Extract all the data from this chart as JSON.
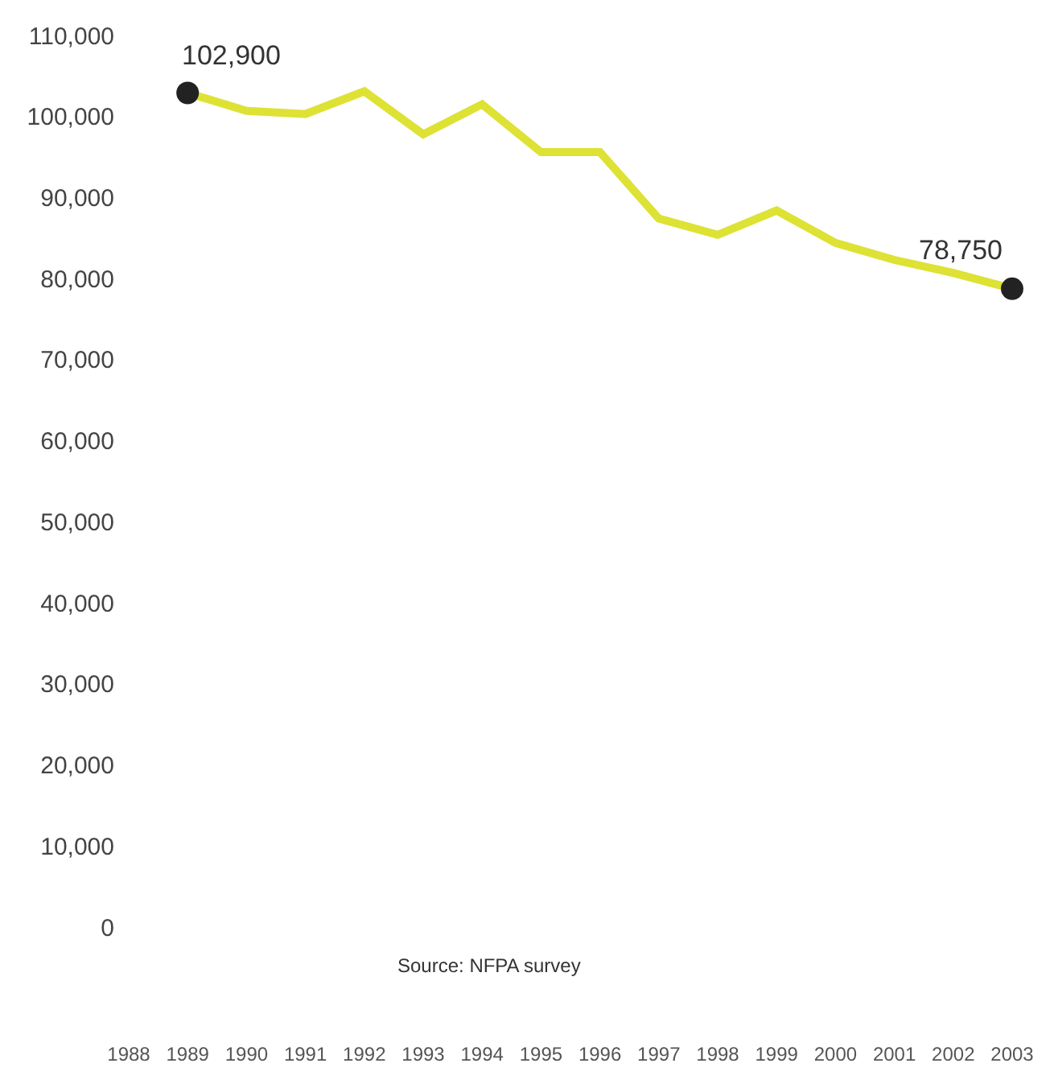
{
  "chart_data": {
    "type": "line",
    "x": [
      1989,
      1990,
      1991,
      1992,
      1993,
      1994,
      1995,
      1996,
      1997,
      1998,
      1999,
      2000,
      2001,
      2002,
      2003
    ],
    "series": [
      {
        "color": "#dde234",
        "values": [
          102900,
          100700,
          100300,
          103100,
          97800,
          101500,
          95600,
          95600,
          87400,
          85400,
          88400,
          84400,
          82300,
          80700,
          78750
        ]
      }
    ],
    "xlim": [
      1988,
      2003
    ],
    "xticks": [
      1988,
      1989,
      1990,
      1991,
      1992,
      1993,
      1994,
      1995,
      1996,
      1997,
      1998,
      1999,
      2000,
      2001,
      2002,
      2003
    ],
    "ylim": [
      0,
      110000
    ],
    "yticks": [
      {
        "value": 0,
        "label": "0"
      },
      {
        "value": 10000,
        "label": "10,000"
      },
      {
        "value": 20000,
        "label": "20,000"
      },
      {
        "value": 30000,
        "label": "30,000"
      },
      {
        "value": 40000,
        "label": "40,000"
      },
      {
        "value": 50000,
        "label": "50,000"
      },
      {
        "value": 60000,
        "label": "60,000"
      },
      {
        "value": 70000,
        "label": "70,000"
      },
      {
        "value": 80000,
        "label": "80,000"
      },
      {
        "value": 90000,
        "label": "90,000"
      },
      {
        "value": 100000,
        "label": "100,000"
      },
      {
        "value": 110000,
        "label": "110,000"
      }
    ],
    "annotations": [
      {
        "text": "102,900",
        "x": 1989,
        "y": 102900
      },
      {
        "text": "78,750",
        "x": 2003,
        "y": 78750
      },
      "Source: NFPA survey"
    ],
    "marker": "none",
    "line_style": "solid"
  }
}
